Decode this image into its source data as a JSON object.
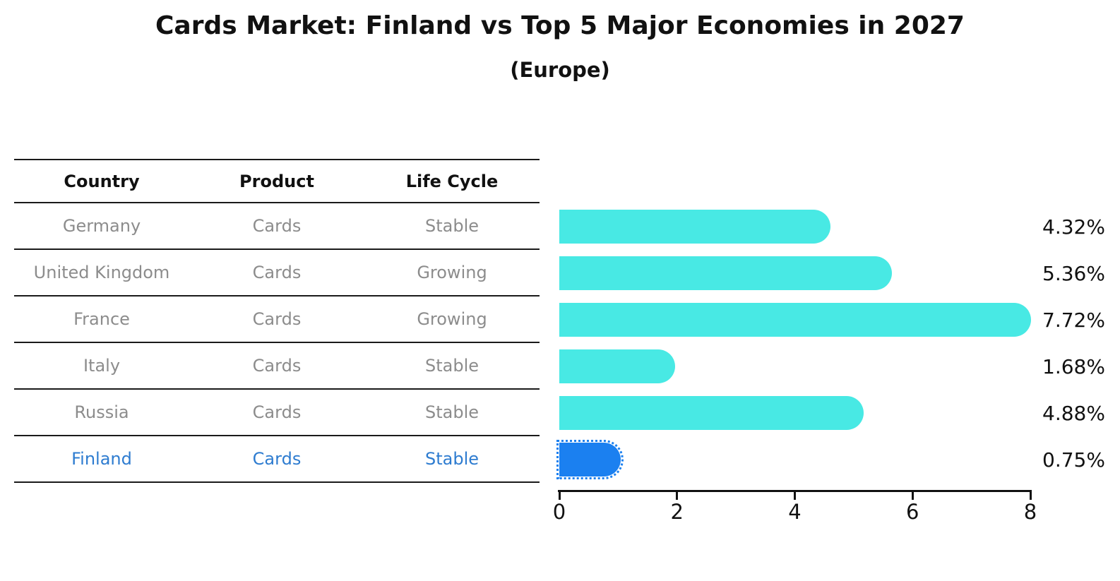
{
  "header": {
    "title": "Cards Market: Finland vs Top 5 Major Economies in 2027",
    "subtitle": "(Europe)"
  },
  "table": {
    "columns": [
      "Country",
      "Product",
      "Life Cycle"
    ],
    "rows": [
      {
        "country": "Germany",
        "product": "Cards",
        "life_cycle": "Stable",
        "highlight": false
      },
      {
        "country": "United Kingdom",
        "product": "Cards",
        "life_cycle": "Growing",
        "highlight": false
      },
      {
        "country": "France",
        "product": "Cards",
        "life_cycle": "Growing",
        "highlight": false
      },
      {
        "country": "Italy",
        "product": "Cards",
        "life_cycle": "Stable",
        "highlight": false
      },
      {
        "country": "Russia",
        "product": "Cards",
        "life_cycle": "Stable",
        "highlight": true
      }
    ]
  },
  "chart_data": {
    "type": "bar",
    "orientation": "horizontal",
    "title": "Cards Market: Finland vs Top 5 Major Economies in 2027",
    "subtitle": "(Europe)",
    "categories": [
      "Germany",
      "United Kingdom",
      "France",
      "Italy",
      "Russia",
      "Finland"
    ],
    "values": [
      4.32,
      5.36,
      7.72,
      1.68,
      4.88,
      0.75
    ],
    "value_labels": [
      "4.32%",
      "5.36%",
      "7.72%",
      "1.68%",
      "4.88%",
      "0.75%"
    ],
    "highlight_category": "Finland",
    "xlabel": "",
    "ylabel": "",
    "xlim": [
      0,
      8
    ],
    "x_ticks": [
      "0",
      "2",
      "4",
      "6",
      "8"
    ],
    "grid": false,
    "legend": false,
    "colors": {
      "default_bar": "#48e9e4",
      "highlight_bar": "#1b80f0",
      "highlight_text": "#2e7cd0",
      "row_text": "#8c8c8c",
      "axis": "#111111"
    }
  },
  "finland_row": {
    "country": "Finland",
    "product": "Cards",
    "life_cycle": "Stable"
  }
}
